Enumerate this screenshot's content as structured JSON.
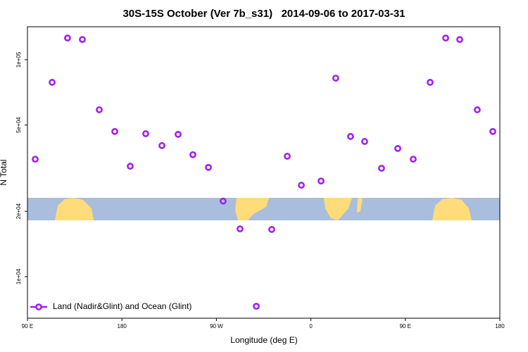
{
  "chart_data": {
    "type": "scatter",
    "title": "30S-15S October (Ver 7b_s31)   2014-09-06 to 2017-03-31",
    "x_label": "Longitude (deg E)",
    "y_label": "N Total",
    "ylog": true,
    "legend": "bottom-left",
    "xlim": [
      90,
      540
    ],
    "ylim": [
      6430,
      142000
    ],
    "xticks": [
      {
        "value": 90,
        "label": "90 E"
      },
      180,
      {
        "value": 270,
        "label": "90 W"
      },
      {
        "value": 360,
        "label": "0"
      },
      {
        "value": 450,
        "label": "90 E"
      },
      {
        "value": 540,
        "label": "180"
      }
    ],
    "yticks": [
      {
        "value": 10000,
        "label": "1e+04"
      },
      {
        "value": 20000,
        "label": "2e+04"
      },
      {
        "value": 50000,
        "label": "5e+04"
      },
      {
        "value": 100000,
        "label": "1e+05"
      }
    ],
    "x": [
      97.4,
      113.5,
      128.2,
      142.3,
      158.4,
      173.2,
      187.9,
      202.7,
      218.1,
      233.5,
      247.6,
      262.4,
      276.4,
      292.5,
      308,
      322.7,
      337.5,
      350.9,
      369.7,
      383.7,
      397.8,
      411.2,
      427.3,
      442.8,
      457.5,
      473.6,
      488.4,
      501.8,
      518.5,
      533.3
    ],
    "series": [
      {
        "name": "Land (Nadir&Glint) and Ocean (Glint)",
        "color": "#a020f0",
        "values": [
          34800,
          78700,
          126000,
          124000,
          58800,
          46700,
          32300,
          45600,
          40200,
          45300,
          36500,
          31900,
          22300,
          16600,
          7300,
          16500,
          35900,
          26400,
          27600,
          82300,
          44300,
          42000,
          31600,
          39000,
          34800,
          78700,
          126000,
          124000,
          58800,
          46700
        ]
      }
    ]
  }
}
